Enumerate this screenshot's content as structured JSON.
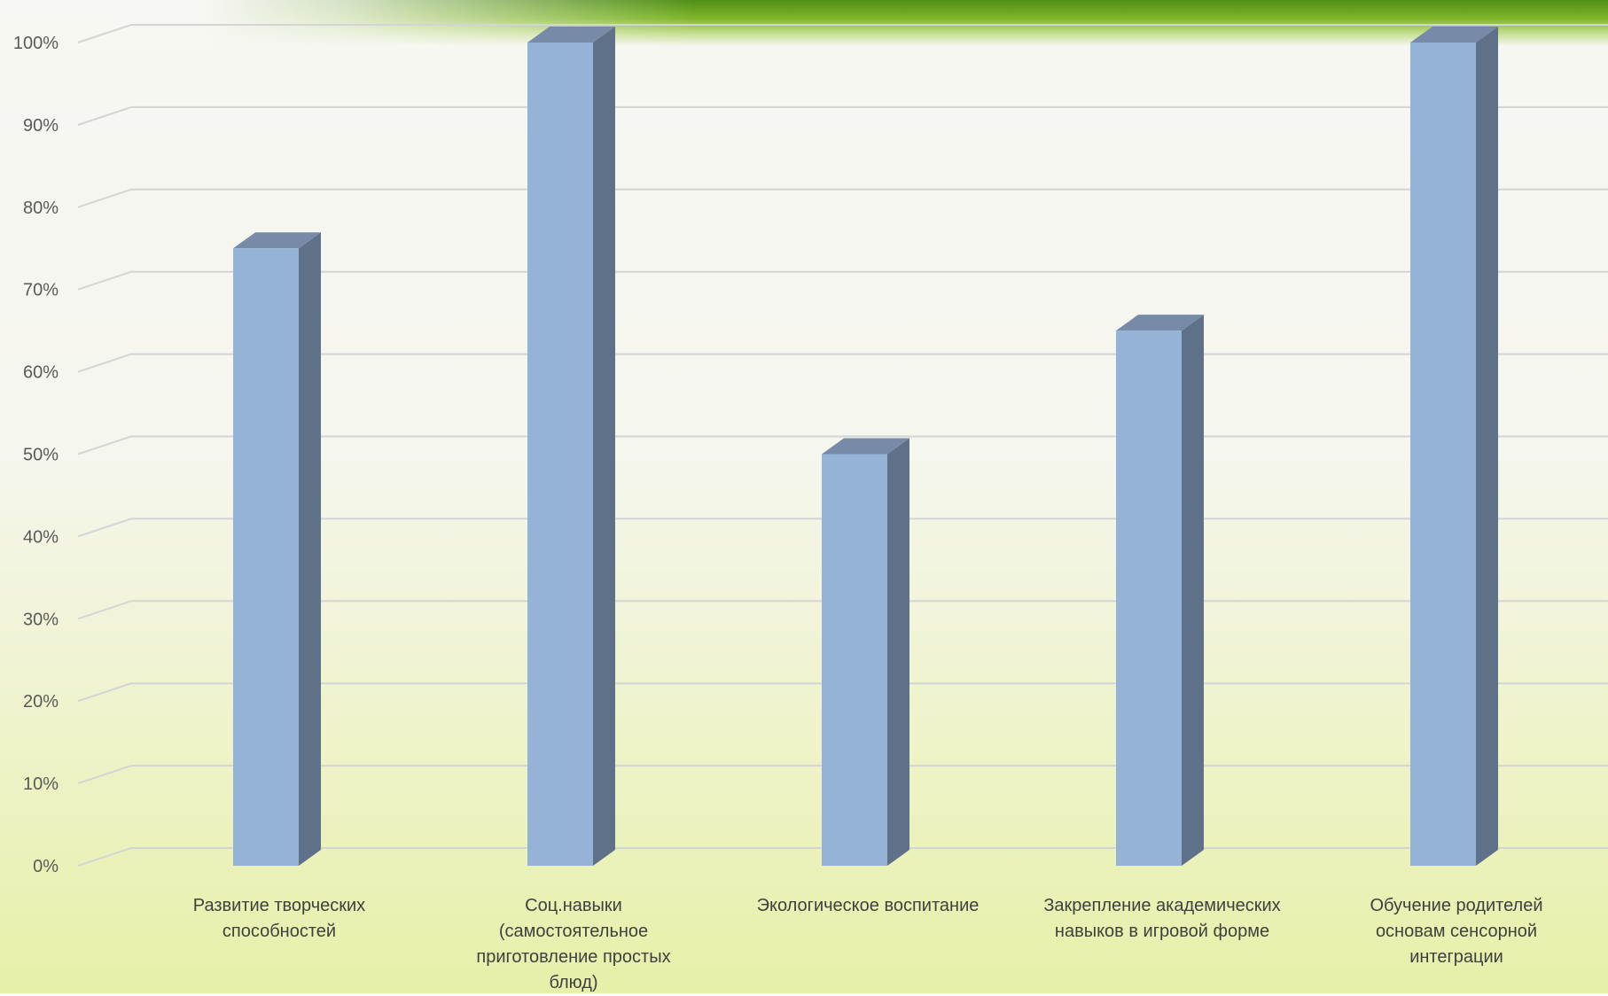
{
  "chart_data": {
    "type": "bar",
    "categories": [
      "Развитие творческих\nспособностей",
      "Соц.навыки\n(самостоятельное\nприготовление простых\nблюд)",
      "Экологическое воспитание",
      "Закрепление академических\nнавыков в игровой форме",
      "Обучение родителей\nосновам сенсорной\nинтеграции"
    ],
    "values": [
      0.75,
      1.0,
      0.5,
      0.65,
      1.0
    ],
    "ylim": [
      0,
      1.0
    ],
    "yticks": [
      "0%",
      "10%",
      "20%",
      "30%",
      "40%",
      "50%",
      "60%",
      "70%",
      "80%",
      "90%",
      "100%"
    ],
    "title": "",
    "xlabel": "",
    "ylabel": "",
    "grid": true,
    "legend": "none",
    "colors": {
      "bar_front": "#95b3d7",
      "bar_side": "#5f7189",
      "bar_top": "#778ba8"
    }
  }
}
